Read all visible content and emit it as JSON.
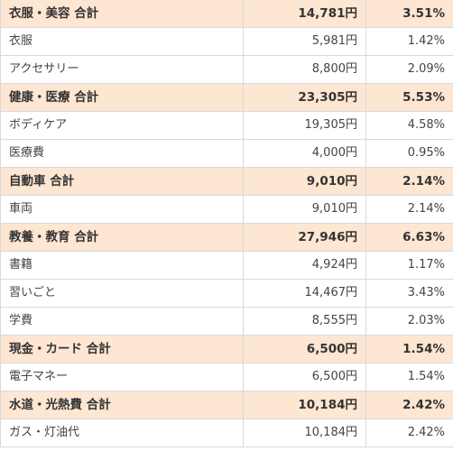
{
  "colors": {
    "total_row_bg": "#fde6d2",
    "item_row_bg": "#ffffff",
    "border": "#d9d9d9"
  },
  "rows": [
    {
      "type": "total",
      "category": "衣服・美容 合計",
      "amount": "14,781円",
      "percent": "3.51%"
    },
    {
      "type": "item",
      "category": "衣服",
      "amount": "5,981円",
      "percent": "1.42%"
    },
    {
      "type": "item",
      "category": "アクセサリー",
      "amount": "8,800円",
      "percent": "2.09%"
    },
    {
      "type": "total",
      "category": "健康・医療 合計",
      "amount": "23,305円",
      "percent": "5.53%"
    },
    {
      "type": "item",
      "category": "ボディケア",
      "amount": "19,305円",
      "percent": "4.58%"
    },
    {
      "type": "item",
      "category": "医療費",
      "amount": "4,000円",
      "percent": "0.95%"
    },
    {
      "type": "total",
      "category": "自動車 合計",
      "amount": "9,010円",
      "percent": "2.14%"
    },
    {
      "type": "item",
      "category": "車両",
      "amount": "9,010円",
      "percent": "2.14%"
    },
    {
      "type": "total",
      "category": "教養・教育 合計",
      "amount": "27,946円",
      "percent": "6.63%"
    },
    {
      "type": "item",
      "category": "書籍",
      "amount": "4,924円",
      "percent": "1.17%"
    },
    {
      "type": "item",
      "category": "習いごと",
      "amount": "14,467円",
      "percent": "3.43%"
    },
    {
      "type": "item",
      "category": "学費",
      "amount": "8,555円",
      "percent": "2.03%"
    },
    {
      "type": "total",
      "category": "現金・カード 合計",
      "amount": "6,500円",
      "percent": "1.54%"
    },
    {
      "type": "item",
      "category": "電子マネー",
      "amount": "6,500円",
      "percent": "1.54%"
    },
    {
      "type": "total",
      "category": "水道・光熱費 合計",
      "amount": "10,184円",
      "percent": "2.42%"
    },
    {
      "type": "item",
      "category": "ガス・灯油代",
      "amount": "10,184円",
      "percent": "2.42%"
    }
  ]
}
